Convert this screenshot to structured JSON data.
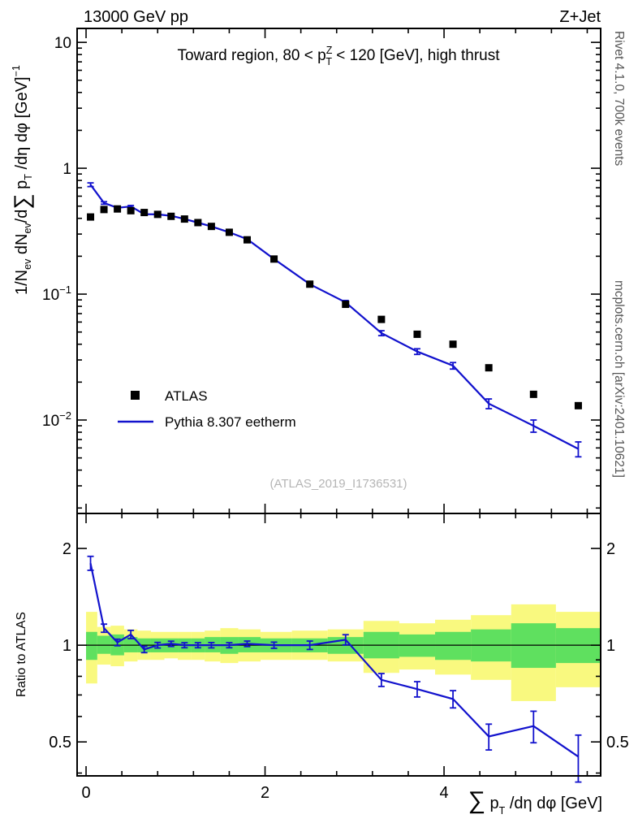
{
  "header": {
    "left": "13000 GeV pp",
    "right": "Z+Jet"
  },
  "panel_title": {
    "pre": "Toward region, 80 < p",
    "sup": "Z",
    "sub": "T",
    "post": " < 120 [GeV], high thrust"
  },
  "watermark": "(ATLAS_2019_I1736531)",
  "side_notes": {
    "top_right": "Rivet 4.1.0,  700k events",
    "bottom_right": "mcplots.cern.ch [arXiv:2401.10621]"
  },
  "legend": {
    "atlas": {
      "label": "ATLAS",
      "marker": "filled-square",
      "color": "#000000"
    },
    "pythia": {
      "label": "Pythia 8.307 eetherm",
      "marker": "line",
      "color": "#1212cd"
    }
  },
  "axis_labels": {
    "y_top": {
      "p1": "1/N",
      "s1": "ev",
      "p2": " dN",
      "s2": "ev",
      "p3": "/d",
      "sum": "∑",
      "p4": " p",
      "s3": "T",
      "p5": " /dη dφ  [GeV]",
      "sup": "−1"
    },
    "y_ratio": "Ratio to ATLAS",
    "x": {
      "sum": "∑",
      "p": " p",
      "sub": "T",
      "post": " /dη dφ [GeV]"
    }
  },
  "colors": {
    "line": "#1212cd",
    "marker": "#000000",
    "band_yellow": "#f9f97f",
    "band_green": "#5fe05f",
    "frame": "#000000",
    "watermark": "#b5b5b5"
  },
  "chart_data": {
    "type": "line",
    "title": "Toward region, 80 < pT(Z) < 120 [GeV], high thrust",
    "xlabel": "Sum pT /deta dphi [GeV]",
    "ylabel_top": "1/Nev dNev/dSum pT /deta dphi [GeV]^-1",
    "ylabel_ratio": "Ratio to ATLAS",
    "xscale": "linear",
    "yscale_top": "log",
    "yscale_ratio": "log",
    "xlim": [
      -0.1,
      5.75
    ],
    "ylim_top": [
      0.00181,
      12.9
    ],
    "ylim_ratio": [
      0.392,
      2.57
    ],
    "x_ticks": [
      0,
      2,
      4
    ],
    "x_minor_step": 0.4,
    "y_top_ticks": [
      {
        "v": 10,
        "base": "10",
        "exp": ""
      },
      {
        "v": 1,
        "base": "1",
        "exp": ""
      },
      {
        "v": 0.1,
        "base": "10",
        "exp": "−1"
      },
      {
        "v": 0.01,
        "base": "10",
        "exp": "−2"
      }
    ],
    "ratio_ticks": [
      {
        "v": 0.5,
        "label": "0.5"
      },
      {
        "v": 1,
        "label": "1"
      },
      {
        "v": 2,
        "label": "2"
      }
    ],
    "ratio_minor_ticks": [
      0.4,
      0.6,
      0.7,
      0.8,
      0.9
    ],
    "x": [
      0.05,
      0.2,
      0.35,
      0.5,
      0.65,
      0.8,
      0.95,
      1.1,
      1.25,
      1.4,
      1.6,
      1.8,
      2.1,
      2.5,
      2.9,
      3.3,
      3.7,
      4.1,
      4.5,
      5.0,
      5.5
    ],
    "series": [
      {
        "name": "ATLAS",
        "type": "scatter",
        "marker": "square",
        "color": "#000000",
        "values": [
          0.41,
          0.47,
          0.475,
          0.46,
          0.445,
          0.43,
          0.415,
          0.395,
          0.37,
          0.345,
          0.31,
          0.27,
          0.19,
          0.12,
          0.083,
          0.063,
          0.048,
          0.04,
          0.026,
          0.016,
          0.013
        ]
      },
      {
        "name": "Pythia 8.307 eetherm",
        "type": "line",
        "color": "#1212cd",
        "values": [
          0.74,
          0.53,
          0.485,
          0.497,
          0.432,
          0.43,
          0.419,
          0.395,
          0.37,
          0.345,
          0.31,
          0.273,
          0.19,
          0.12,
          0.086,
          0.049,
          0.035,
          0.027,
          0.0135,
          0.009,
          0.0059
        ],
        "yerr": [
          0.025,
          0.012,
          0.009,
          0.009,
          0.008,
          0.007,
          0.007,
          0.006,
          0.006,
          0.006,
          0.005,
          0.005,
          0.004,
          0.0035,
          0.003,
          0.0022,
          0.0018,
          0.0016,
          0.0012,
          0.001,
          0.0008
        ]
      }
    ],
    "ratio": {
      "name": "Pythia/ATLAS",
      "reference_line": 1,
      "values": [
        1.8,
        1.13,
        1.02,
        1.08,
        0.97,
        1.0,
        1.01,
        1.0,
        1.0,
        1.0,
        1.0,
        1.01,
        1.0,
        1.0,
        1.04,
        0.78,
        0.73,
        0.68,
        0.52,
        0.56,
        0.45
      ],
      "yerr": [
        0.09,
        0.033,
        0.024,
        0.032,
        0.022,
        0.02,
        0.019,
        0.018,
        0.018,
        0.019,
        0.018,
        0.02,
        0.022,
        0.03,
        0.038,
        0.036,
        0.04,
        0.042,
        0.048,
        0.063,
        0.075
      ],
      "band_colors": {
        "yellow": "#f9f97f",
        "green": "#5fe05f"
      },
      "bands": [
        {
          "xlo": 0.0,
          "xhi": 0.125,
          "yellow": [
            0.76,
            1.27
          ],
          "green": [
            0.9,
            1.1
          ]
        },
        {
          "xlo": 0.125,
          "xhi": 0.275,
          "yellow": [
            0.87,
            1.14
          ],
          "green": [
            0.94,
            1.07
          ]
        },
        {
          "xlo": 0.275,
          "xhi": 0.425,
          "yellow": [
            0.86,
            1.15
          ],
          "green": [
            0.93,
            1.08
          ]
        },
        {
          "xlo": 0.425,
          "xhi": 0.575,
          "yellow": [
            0.89,
            1.12
          ],
          "green": [
            0.95,
            1.06
          ]
        },
        {
          "xlo": 0.575,
          "xhi": 0.725,
          "yellow": [
            0.9,
            1.11
          ],
          "green": [
            0.95,
            1.05
          ]
        },
        {
          "xlo": 0.725,
          "xhi": 0.875,
          "yellow": [
            0.9,
            1.1
          ],
          "green": [
            0.95,
            1.05
          ]
        },
        {
          "xlo": 0.875,
          "xhi": 1.025,
          "yellow": [
            0.91,
            1.1
          ],
          "green": [
            0.95,
            1.05
          ]
        },
        {
          "xlo": 1.025,
          "xhi": 1.175,
          "yellow": [
            0.9,
            1.1
          ],
          "green": [
            0.95,
            1.05
          ]
        },
        {
          "xlo": 1.175,
          "xhi": 1.325,
          "yellow": [
            0.9,
            1.1
          ],
          "green": [
            0.95,
            1.05
          ]
        },
        {
          "xlo": 1.325,
          "xhi": 1.5,
          "yellow": [
            0.89,
            1.11
          ],
          "green": [
            0.95,
            1.06
          ]
        },
        {
          "xlo": 1.5,
          "xhi": 1.7,
          "yellow": [
            0.88,
            1.13
          ],
          "green": [
            0.94,
            1.06
          ]
        },
        {
          "xlo": 1.7,
          "xhi": 1.95,
          "yellow": [
            0.89,
            1.12
          ],
          "green": [
            0.95,
            1.06
          ]
        },
        {
          "xlo": 1.95,
          "xhi": 2.3,
          "yellow": [
            0.9,
            1.1
          ],
          "green": [
            0.95,
            1.05
          ]
        },
        {
          "xlo": 2.3,
          "xhi": 2.7,
          "yellow": [
            0.9,
            1.11
          ],
          "green": [
            0.95,
            1.05
          ]
        },
        {
          "xlo": 2.7,
          "xhi": 3.1,
          "yellow": [
            0.89,
            1.12
          ],
          "green": [
            0.94,
            1.06
          ]
        },
        {
          "xlo": 3.1,
          "xhi": 3.5,
          "yellow": [
            0.82,
            1.19
          ],
          "green": [
            0.91,
            1.1
          ]
        },
        {
          "xlo": 3.5,
          "xhi": 3.9,
          "yellow": [
            0.84,
            1.17
          ],
          "green": [
            0.92,
            1.08
          ]
        },
        {
          "xlo": 3.9,
          "xhi": 4.3,
          "yellow": [
            0.81,
            1.2
          ],
          "green": [
            0.9,
            1.1
          ]
        },
        {
          "xlo": 4.3,
          "xhi": 4.75,
          "yellow": [
            0.78,
            1.24
          ],
          "green": [
            0.89,
            1.12
          ]
        },
        {
          "xlo": 4.75,
          "xhi": 5.25,
          "yellow": [
            0.67,
            1.34
          ],
          "green": [
            0.85,
            1.17
          ]
        },
        {
          "xlo": 5.25,
          "xhi": 5.75,
          "yellow": [
            0.74,
            1.27
          ],
          "green": [
            0.88,
            1.13
          ]
        }
      ]
    }
  }
}
